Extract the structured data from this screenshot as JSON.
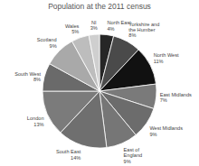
{
  "chart_data": {
    "type": "pie",
    "title": "Population at the 2011 census",
    "categories": [
      "North East",
      "Yorkshire and the Humber",
      "North West",
      "East Midlands",
      "West Midlands",
      "East of England",
      "South East",
      "London",
      "South West",
      "Scotland",
      "Wales",
      "NI"
    ],
    "values": [
      4,
      8,
      11,
      7,
      9,
      9,
      14,
      13,
      8,
      9,
      5,
      3
    ],
    "value_labels": [
      "4%",
      "8%",
      "11%",
      "7%",
      "9%",
      "9%",
      "14%",
      "13%",
      "8%",
      "9%",
      "5%",
      "3%"
    ],
    "colors": [
      "#262626",
      "#4a4a4a",
      "#111111",
      "#7a7a7a",
      "#6c6c6c",
      "#767676",
      "#6f6f6f",
      "#7b7b7b",
      "#6a6a6a",
      "#a9a9a9",
      "#bdbdbd",
      "#cfcfcf"
    ],
    "data_labels": true
  }
}
